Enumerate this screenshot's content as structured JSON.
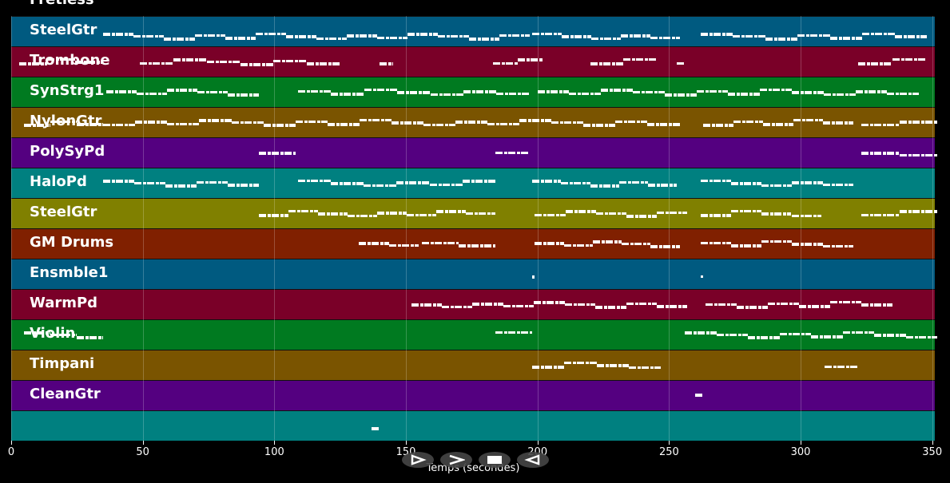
{
  "tracks": [
    {
      "name": "Fretless",
      "color": "#005a80",
      "segments": [
        [
          35,
          197
        ],
        [
          198,
          254
        ],
        [
          262,
          348
        ]
      ]
    },
    {
      "name": "SteelGtr",
      "color": "#7a0028",
      "segments": [
        [
          3,
          35
        ],
        [
          49,
          125
        ],
        [
          140,
          145
        ],
        [
          183,
          202
        ],
        [
          220,
          245
        ],
        [
          253,
          256
        ],
        [
          322,
          348
        ]
      ]
    },
    {
      "name": "Trombone",
      "color": "#007a20",
      "segments": [
        [
          36,
          94
        ],
        [
          109,
          197
        ],
        [
          200,
          345
        ]
      ]
    },
    {
      "name": "SynStrg1",
      "color": "#7a5400",
      "segments": [
        [
          5,
          35
        ],
        [
          35,
          254
        ],
        [
          263,
          320
        ],
        [
          323,
          352
        ]
      ]
    },
    {
      "name": "NylonGtr",
      "color": "#540080",
      "segments": [
        [
          94,
          108
        ],
        [
          184,
          197
        ],
        [
          323,
          352
        ]
      ]
    },
    {
      "name": "PolySyPd",
      "color": "#008080",
      "segments": [
        [
          35,
          94
        ],
        [
          109,
          184
        ],
        [
          198,
          253
        ],
        [
          262,
          320
        ]
      ]
    },
    {
      "name": "HaloPd",
      "color": "#808000",
      "segments": [
        [
          94,
          184
        ],
        [
          199,
          257
        ],
        [
          262,
          308
        ],
        [
          323,
          352
        ]
      ]
    },
    {
      "name": "SteelGtr",
      "color": "#802000",
      "segments": [
        [
          132,
          155
        ],
        [
          156,
          184
        ],
        [
          199,
          254
        ],
        [
          262,
          320
        ]
      ]
    },
    {
      "name": "GM Drums",
      "color": "#005a80",
      "segments": [
        [
          198,
          198.5
        ],
        [
          262,
          262.5
        ]
      ]
    },
    {
      "name": "Ensmble1",
      "color": "#7a0028",
      "segments": [
        [
          152,
          257
        ],
        [
          264,
          335
        ]
      ]
    },
    {
      "name": "WarmPd",
      "color": "#007a20",
      "segments": [
        [
          5,
          35
        ],
        [
          184,
          198
        ],
        [
          256,
          352
        ]
      ]
    },
    {
      "name": "Violin",
      "color": "#7a5400",
      "segments": [
        [
          198,
          247
        ],
        [
          309,
          322
        ]
      ]
    },
    {
      "name": "Timpani",
      "color": "#540080",
      "segments": [
        [
          260,
          263
        ]
      ]
    },
    {
      "name": "CleanGtr",
      "color": "#008080",
      "segments": [
        [
          137,
          140
        ]
      ]
    }
  ],
  "xaxis": {
    "label": "Temps (secondes)",
    "min": 0,
    "max": 351,
    "ticks": [
      0,
      50,
      100,
      150,
      200,
      250,
      300,
      350
    ]
  },
  "controls": [
    {
      "name": "play-icon",
      "label": "play"
    },
    {
      "name": "forward-icon",
      "label": "forward"
    },
    {
      "name": "stop-icon",
      "label": "stop"
    },
    {
      "name": "rewind-icon",
      "label": "rewind"
    }
  ]
}
